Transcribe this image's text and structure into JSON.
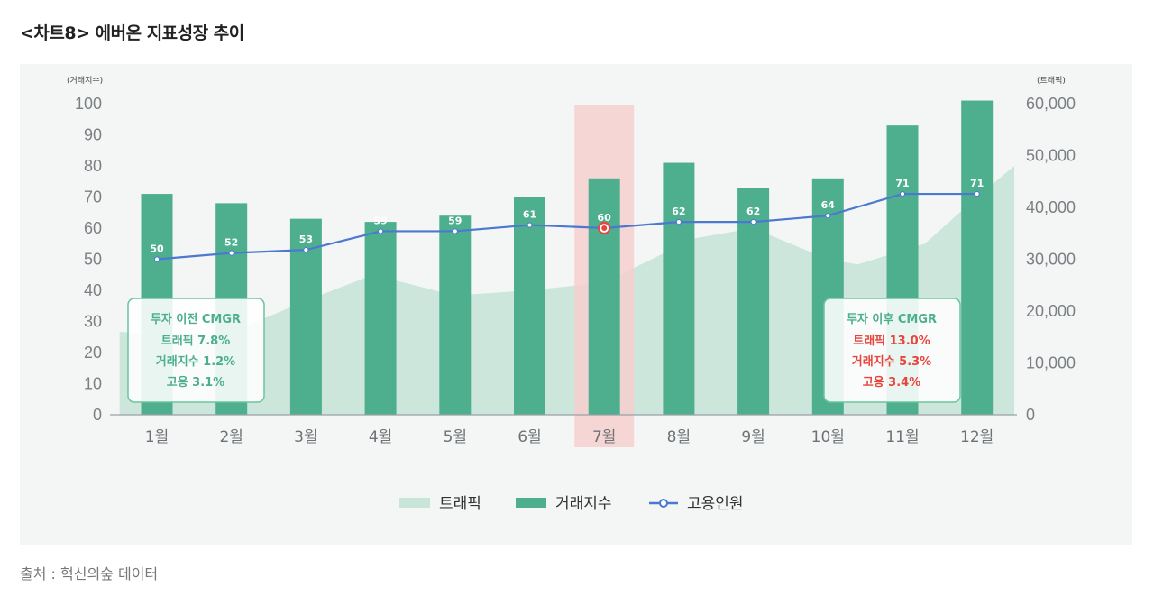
{
  "title": "<차트8>  에버온 지표성장 추이",
  "source": "출처 : 혁신의숲 데이터",
  "colors": {
    "traffic": "#c9e5d9",
    "volume": "#4daf8e",
    "employ": "#4c78d0",
    "highlight": "#f6cfcf",
    "box_border": "#6cc39f",
    "green_text": "#4caf8b",
    "red_text": "#e8443c"
  },
  "before_box": {
    "title": "투자 이전 CMGR",
    "lines": [
      "트래픽 7.8%",
      "거래지수 1.2%",
      "고용 3.1%"
    ]
  },
  "after_box": {
    "title": "투자 이후 CMGR",
    "lines": [
      "트래픽 13.0%",
      "거래지수 5.3%",
      "고용 3.4%"
    ]
  },
  "chart_data": {
    "type": "bar",
    "categories": [
      "1월",
      "2월",
      "3월",
      "4월",
      "5월",
      "6월",
      "7월",
      "8월",
      "9월",
      "10월",
      "11월",
      "12월"
    ],
    "highlight_category": "7월",
    "left_axis": {
      "label": "(거래지수)",
      "ylim": [
        0,
        100
      ],
      "ticks": [
        "0",
        "10",
        "20",
        "30",
        "40",
        "50",
        "60",
        "70",
        "80",
        "90",
        "100"
      ]
    },
    "right_axis": {
      "label": "(트래픽)",
      "ylim": [
        0,
        60000
      ],
      "ticks": [
        "0",
        "10,000",
        "20,000",
        "30,000",
        "40,000",
        "50,000",
        "60,000"
      ]
    },
    "legend": [
      "트래픽",
      "거래지수",
      "고용인원"
    ],
    "series": [
      {
        "name": "거래지수",
        "type": "bar",
        "axis": "left",
        "values": [
          71,
          68,
          63,
          62,
          64,
          70,
          76,
          81,
          73,
          76,
          93,
          101
        ]
      },
      {
        "name": "고용인원",
        "type": "line",
        "axis": "left",
        "values": [
          50,
          52,
          53,
          59,
          59,
          61,
          60,
          62,
          62,
          64,
          71,
          71
        ],
        "labels": [
          "50",
          "52",
          "53",
          "59",
          "59",
          "61",
          "60",
          "62",
          "62",
          "64",
          "71",
          "71"
        ]
      },
      {
        "name": "트래픽",
        "type": "area",
        "axis": "right",
        "x": [
          -0.5,
          0.6,
          1.1,
          2.0,
          2.9,
          4.0,
          5.0,
          6.0,
          7.2,
          8.0,
          9.0,
          9.4,
          10.3,
          11.0,
          11.5
        ],
        "values": [
          16000,
          15000,
          16500,
          22000,
          27000,
          23000,
          24000,
          25500,
          34000,
          36000,
          30000,
          29000,
          33000,
          42000,
          48000
        ]
      }
    ]
  }
}
